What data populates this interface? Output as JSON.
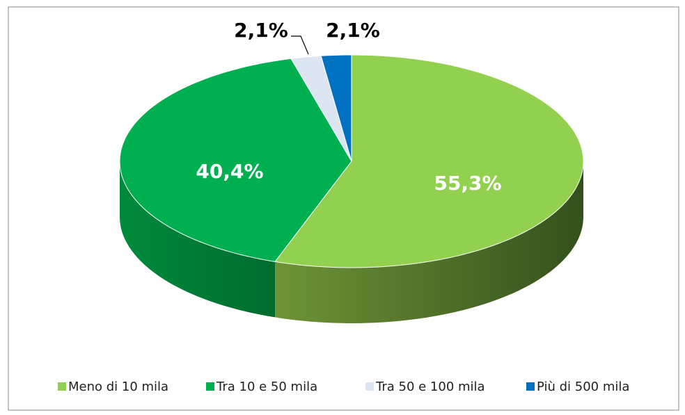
{
  "chart_data": {
    "type": "pie",
    "categories": [
      "Meno di 10 mila",
      "Tra 10 e 50 mila",
      "Tra 50 e 100 mila",
      "Più di 500 mila"
    ],
    "values": [
      55.3,
      40.4,
      2.1,
      2.1
    ],
    "value_labels": [
      "55,3%",
      "40,4%",
      "2,1%",
      "2,1%"
    ],
    "colors": [
      "#92d050",
      "#00b050",
      "#dce6f2",
      "#0070c0"
    ],
    "legend": "bottom"
  }
}
